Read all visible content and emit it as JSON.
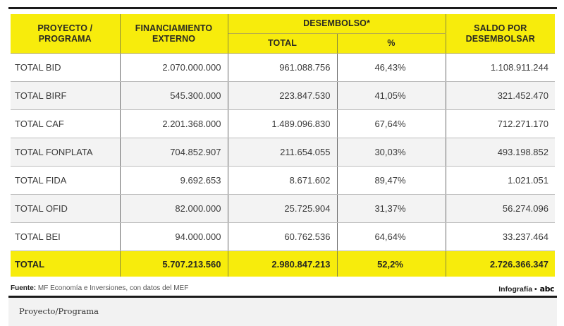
{
  "table": {
    "headers": {
      "proyecto": "PROYECTO / PROGRAMA",
      "proyecto_line1": "PROYECTO /",
      "proyecto_line2": "PROGRAMA",
      "financiamiento_line1": "FINANCIAMIENTO",
      "financiamiento_line2": "EXTERNO",
      "desembolso": "DESEMBOLSO*",
      "desembolso_total": "TOTAL",
      "desembolso_pct": "%",
      "saldo_line1": "SALDO POR",
      "saldo_line2": "DESEMBOLSAR"
    },
    "rows": [
      {
        "name": "TOTAL BID",
        "financiamiento": "2.070.000.000",
        "desembolso_total": "961.088.756",
        "desembolso_pct": "46,43%",
        "saldo": "1.108.911.244"
      },
      {
        "name": "TOTAL BIRF",
        "financiamiento": "545.300.000",
        "desembolso_total": "223.847.530",
        "desembolso_pct": "41,05%",
        "saldo": "321.452.470"
      },
      {
        "name": "TOTAL CAF",
        "financiamiento": "2.201.368.000",
        "desembolso_total": "1.489.096.830",
        "desembolso_pct": "67,64%",
        "saldo": "712.271.170"
      },
      {
        "name": "TOTAL FONPLATA",
        "financiamiento": "704.852.907",
        "desembolso_total": "211.654.055",
        "desembolso_pct": "30,03%",
        "saldo": "493.198.852"
      },
      {
        "name": "TOTAL FIDA",
        "financiamiento": "9.692.653",
        "desembolso_total": "8.671.602",
        "desembolso_pct": "89,47%",
        "saldo": "1.021.051"
      },
      {
        "name": "TOTAL OFID",
        "financiamiento": "82.000.000",
        "desembolso_total": "25.725.904",
        "desembolso_pct": "31,37%",
        "saldo": "56.274.096"
      },
      {
        "name": "TOTAL BEI",
        "financiamiento": "94.000.000",
        "desembolso_total": "60.762.536",
        "desembolso_pct": "64,64%",
        "saldo": "33.237.464"
      }
    ],
    "total": {
      "name": "TOTAL",
      "financiamiento": "5.707.213.560",
      "desembolso_total": "2.980.847.213",
      "desembolso_pct": "52,2%",
      "saldo": "2.726.366.347"
    }
  },
  "footer": {
    "source_label": "Fuente:",
    "source_text": " MF Economía e Inversiones, con datos del MEF",
    "credit_text": "Infografía •",
    "logo_text": "abc"
  },
  "caption": "Proyecto/Programa",
  "colors": {
    "header_yellow": "#f7ec0c",
    "stripe_gray": "#f3f3f3",
    "rule_black": "#1a1a1a",
    "caption_bg": "#f2f2f2"
  }
}
